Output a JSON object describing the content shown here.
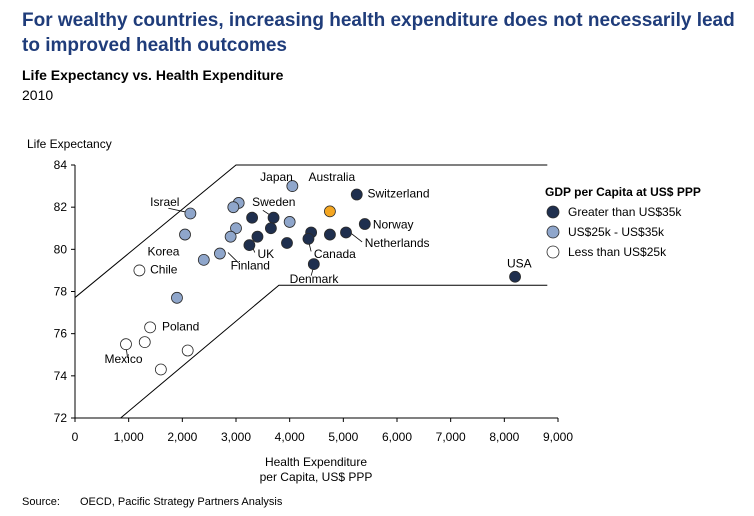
{
  "header": {
    "headline": "For wealthy countries, increasing health expenditure does not necessarily lead to improved health outcomes",
    "subtitle": "Life Expectancy vs. Health Expenditure",
    "year": "2010"
  },
  "source": {
    "label": "Source:",
    "text": "OECD, Pacific Strategy Partners Analysis"
  },
  "colors": {
    "high": "#1f2f4e",
    "mid": "#8fa6cb",
    "low": "#ffffff",
    "highlight": "#f4a621",
    "band": "#000000"
  },
  "chart_data": {
    "type": "scatter",
    "ylabel": "Life Expectancy",
    "xlabel_lines": [
      "Health Expenditure",
      "per Capita, US$ PPP"
    ],
    "xlim": [
      0,
      9000
    ],
    "ylim": [
      72,
      84
    ],
    "xticks": [
      "0",
      "1,000",
      "2,000",
      "3,000",
      "4,000",
      "5,000",
      "6,000",
      "7,000",
      "8,000",
      "9,000"
    ],
    "yticks": [
      "72",
      "74",
      "76",
      "78",
      "80",
      "82",
      "84"
    ],
    "grid": false,
    "legend": {
      "title": "GDP per Capita at US$ PPP",
      "position": "right",
      "items": [
        {
          "label": "Greater than US$35k",
          "group": "high"
        },
        {
          "label": "US$25k - US$35k",
          "group": "mid"
        },
        {
          "label": "Less than US$25k",
          "group": "low"
        }
      ]
    },
    "band_upper": [
      [
        -100,
        77.5
      ],
      [
        3000,
        84
      ],
      [
        8800,
        84
      ]
    ],
    "band_lower": [
      [
        850,
        72
      ],
      [
        3800,
        78.3
      ],
      [
        8800,
        78.3
      ]
    ],
    "points": [
      {
        "x": 3300,
        "y": 81.5,
        "group": "high"
      },
      {
        "x": 3700,
        "y": 81.5,
        "group": "high"
      },
      {
        "x": 3650,
        "y": 81.0,
        "group": "high"
      },
      {
        "x": 3400,
        "y": 80.6,
        "group": "high"
      },
      {
        "x": 3250,
        "y": 80.2,
        "group": "high"
      },
      {
        "x": 3950,
        "y": 80.3,
        "group": "high"
      },
      {
        "x": 4400,
        "y": 80.8,
        "group": "high"
      },
      {
        "x": 4350,
        "y": 80.5,
        "group": "high"
      },
      {
        "x": 4450,
        "y": 79.3,
        "group": "high"
      },
      {
        "x": 4750,
        "y": 80.7,
        "group": "high"
      },
      {
        "x": 5050,
        "y": 80.8,
        "group": "high"
      },
      {
        "x": 5250,
        "y": 82.6,
        "group": "high"
      },
      {
        "x": 5400,
        "y": 81.2,
        "group": "high"
      },
      {
        "x": 8200,
        "y": 78.7,
        "group": "high"
      },
      {
        "x": 4750,
        "y": 81.8,
        "group": "highlight"
      },
      {
        "x": 4050,
        "y": 83.0,
        "group": "mid"
      },
      {
        "x": 3050,
        "y": 82.2,
        "group": "mid"
      },
      {
        "x": 2950,
        "y": 82.0,
        "group": "mid"
      },
      {
        "x": 3000,
        "y": 81.0,
        "group": "mid"
      },
      {
        "x": 2900,
        "y": 80.6,
        "group": "mid"
      },
      {
        "x": 4000,
        "y": 81.3,
        "group": "mid"
      },
      {
        "x": 2150,
        "y": 81.7,
        "group": "mid"
      },
      {
        "x": 2050,
        "y": 80.7,
        "group": "mid"
      },
      {
        "x": 2700,
        "y": 79.8,
        "group": "mid"
      },
      {
        "x": 2400,
        "y": 79.5,
        "group": "mid"
      },
      {
        "x": 1900,
        "y": 77.7,
        "group": "mid"
      },
      {
        "x": 1200,
        "y": 79.0,
        "group": "low"
      },
      {
        "x": 1400,
        "y": 76.3,
        "group": "low"
      },
      {
        "x": 1300,
        "y": 75.6,
        "group": "low"
      },
      {
        "x": 950,
        "y": 75.5,
        "group": "low"
      },
      {
        "x": 2100,
        "y": 75.2,
        "group": "low"
      },
      {
        "x": 1600,
        "y": 74.3,
        "group": "low"
      }
    ],
    "annotations": [
      {
        "text": "Japan",
        "x": 3450,
        "y": 83.25
      },
      {
        "text": "Australia",
        "x": 4350,
        "y": 83.25
      },
      {
        "text": "Switzerland",
        "x": 5450,
        "y": 82.45
      },
      {
        "text": "Israel",
        "x": 1400,
        "y": 82.05
      },
      {
        "text": "Sweden",
        "x": 3300,
        "y": 82.05
      },
      {
        "text": "Norway",
        "x": 5550,
        "y": 81.0
      },
      {
        "text": "Netherlands",
        "x": 5400,
        "y": 80.1
      },
      {
        "text": "Korea",
        "x": 1350,
        "y": 79.7
      },
      {
        "text": "UK",
        "x": 3400,
        "y": 79.6
      },
      {
        "text": "Canada",
        "x": 4450,
        "y": 79.6
      },
      {
        "text": "Finland",
        "x": 2900,
        "y": 79.05
      },
      {
        "text": "Chile",
        "x": 1400,
        "y": 78.85
      },
      {
        "text": "Denmark",
        "x": 4000,
        "y": 78.4
      },
      {
        "text": "USA",
        "x": 8050,
        "y": 79.15
      },
      {
        "text": "Poland",
        "x": 1620,
        "y": 76.15
      },
      {
        "text": "Mexico",
        "x": 550,
        "y": 74.6
      }
    ]
  }
}
